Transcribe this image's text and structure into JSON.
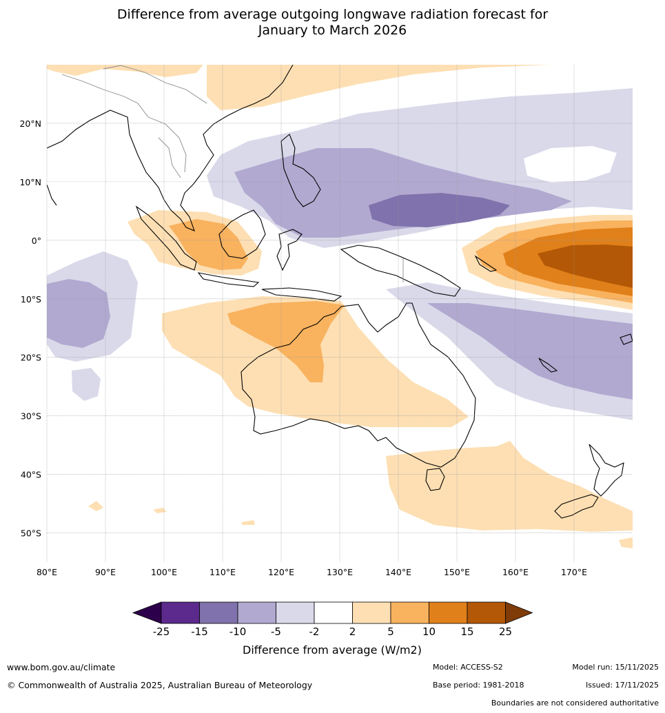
{
  "title_line1": "Difference from average outgoing longwave radiation forecast for",
  "title_line2": "January to March 2026",
  "map": {
    "lon_range": [
      80,
      180
    ],
    "lat_range": [
      -55,
      30
    ],
    "lon_ticks": [
      80,
      90,
      100,
      110,
      120,
      130,
      140,
      150,
      160,
      170
    ],
    "lat_ticks": [
      20,
      10,
      0,
      -10,
      -20,
      -30,
      -40,
      -50
    ],
    "lon_labels": [
      "80°E",
      "90°E",
      "100°E",
      "110°E",
      "120°E",
      "130°E",
      "140°E",
      "150°E",
      "160°E",
      "170°E"
    ],
    "lat_labels": [
      "20°N",
      "10°N",
      "0°",
      "10°S",
      "20°S",
      "30°S",
      "40°S",
      "50°S"
    ]
  },
  "colorbar": {
    "ticks": [
      "-25",
      "-15",
      "-10",
      "-5",
      "-2",
      "2",
      "5",
      "10",
      "15",
      "25"
    ],
    "colors": [
      "#5b2a8c",
      "#8072ac",
      "#b1a9d0",
      "#d9d9ea",
      "#ffffff",
      "#fddfb3",
      "#f9b25e",
      "#e0801a",
      "#b35806"
    ],
    "under_color": "#2d004b",
    "over_color": "#7f3b08",
    "label": "Difference from average (W/m2)"
  },
  "footer": {
    "website": "www.bom.gov.au/climate",
    "copyright": "© Commonwealth of Australia 2025, Australian Bureau of Meteorology",
    "model": "Model: ACCESS-S2",
    "base_period": "Base period: 1981-2018",
    "model_run": "Model run: 15/11/2025",
    "issued": "Issued: 17/11/2025",
    "boundaries": "Boundaries are not considered authoritative"
  }
}
